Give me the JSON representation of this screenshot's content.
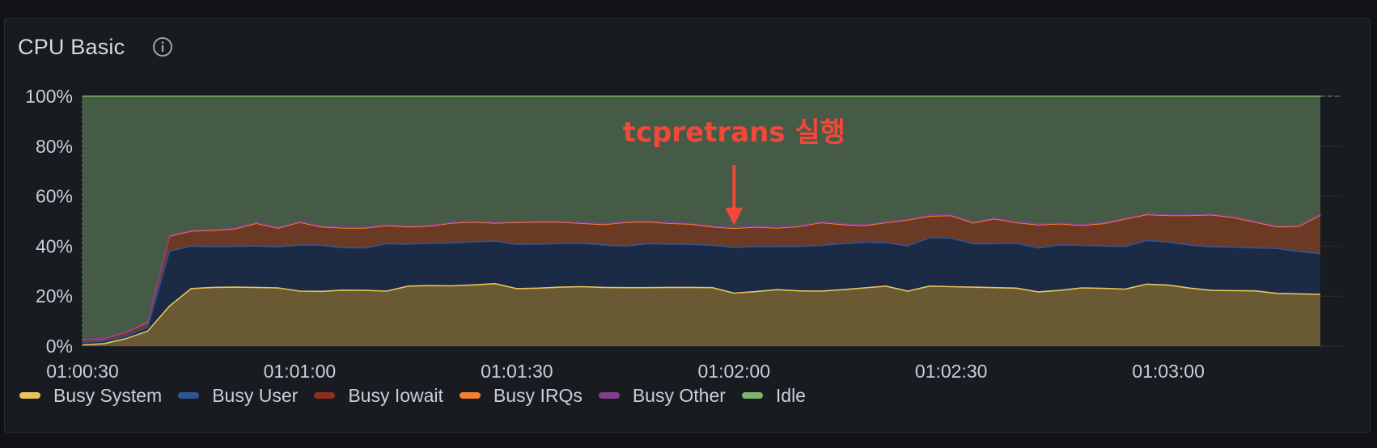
{
  "panel": {
    "title": "CPU Basic",
    "info_icon": "info-circle-icon"
  },
  "chart_data": {
    "type": "area",
    "stacked": true,
    "x": [
      "01:00:30",
      "01:00:33",
      "01:00:36",
      "01:00:39",
      "01:00:42",
      "01:00:45",
      "01:00:48",
      "01:00:51",
      "01:00:54",
      "01:00:57",
      "01:01:00",
      "01:01:03",
      "01:01:06",
      "01:01:09",
      "01:01:12",
      "01:01:15",
      "01:01:18",
      "01:01:21",
      "01:01:24",
      "01:01:27",
      "01:01:30",
      "01:01:33",
      "01:01:36",
      "01:01:39",
      "01:01:42",
      "01:01:45",
      "01:01:48",
      "01:01:51",
      "01:01:54",
      "01:01:57",
      "01:02:00",
      "01:02:03",
      "01:02:06",
      "01:02:09",
      "01:02:12",
      "01:02:15",
      "01:02:18",
      "01:02:21",
      "01:02:24",
      "01:02:27",
      "01:02:30",
      "01:02:33",
      "01:02:36",
      "01:02:39",
      "01:02:42",
      "01:02:45",
      "01:02:48",
      "01:02:51",
      "01:02:54",
      "01:02:57",
      "01:03:00",
      "01:03:03",
      "01:03:06",
      "01:03:09",
      "01:03:12",
      "01:03:15",
      "01:03:18",
      "01:03:21"
    ],
    "x_ticks": [
      "01:00:30",
      "01:01:00",
      "01:01:30",
      "01:02:00",
      "01:02:30",
      "01:03:00"
    ],
    "y_ticks": [
      "0%",
      "20%",
      "40%",
      "60%",
      "80%",
      "100%"
    ],
    "ylim": [
      0,
      100
    ],
    "y_unit": "%",
    "grid": true,
    "legend_position": "bottom-left",
    "series": [
      {
        "name": "Busy System",
        "color": "#e8c45c",
        "fill": "#6a5a34",
        "values": [
          0.5,
          1,
          3,
          6,
          16,
          23,
          23.5,
          23.6,
          23.5,
          23.3,
          22,
          21.9,
          22.4,
          22.3,
          22,
          24,
          24.2,
          24.1,
          24.5,
          25,
          23,
          23.2,
          23.6,
          23.8,
          23.5,
          23.4,
          23.4,
          23.5,
          23.5,
          23.4,
          21.2,
          21.8,
          22.6,
          22.1,
          22,
          22.6,
          23.3,
          24,
          22,
          24,
          23.8,
          23.6,
          23.4,
          23.2,
          21.7,
          22.3,
          23.3,
          23.1,
          22.8,
          24.8,
          24.4,
          23.2,
          22.3,
          22.2,
          22.1,
          21.1,
          20.9,
          20.7
        ]
      },
      {
        "name": "Busy User",
        "color": "#2f5597",
        "fill": "#1b2b45",
        "values": [
          1,
          1,
          1,
          1.5,
          22,
          17,
          16.3,
          16.3,
          16.6,
          16.4,
          18.5,
          18.5,
          17,
          17,
          19,
          16.8,
          17,
          17.2,
          17.3,
          17,
          17.7,
          17.6,
          17.5,
          17.4,
          17,
          16.6,
          17.6,
          17.3,
          17.2,
          17,
          18.3,
          18,
          17.3,
          17.8,
          18.3,
          18.4,
          18.3,
          17.4,
          18.1,
          19.4,
          19.4,
          17.4,
          17.6,
          18,
          17.6,
          18.2,
          17,
          17,
          17,
          17.5,
          17.2,
          17.3,
          17.4,
          17.4,
          17.2,
          18,
          17,
          16.3
        ]
      },
      {
        "name": "Busy Iowait",
        "color": "#8f2d1e",
        "fill": "#6b3a25",
        "values": [
          1,
          1,
          1.5,
          2,
          6,
          6,
          6.5,
          7,
          9,
          7.5,
          9,
          7.3,
          7.8,
          7.9,
          7.2,
          6.9,
          6.8,
          7.9,
          7.8,
          7.2,
          8.8,
          8.8,
          8.5,
          7.9,
          8.1,
          9.5,
          8.7,
          8.3,
          8.1,
          7.3,
          7.6,
          7.8,
          7.3,
          7.9,
          9.1,
          7.6,
          6.6,
          8,
          10.3,
          8.6,
          9,
          8.3,
          9.9,
          8.2,
          9.2,
          8.4,
          8,
          8.9,
          11,
          10.3,
          10.6,
          11.7,
          12.8,
          11.8,
          10.3,
          8.6,
          10,
          15.4
        ]
      },
      {
        "name": "Busy IRQs",
        "color": "#f57f2f",
        "fill": "#f57f2f",
        "values": [
          0.05,
          0.05,
          0.05,
          0.05,
          0.05,
          0.05,
          0.05,
          0.05,
          0.05,
          0.05,
          0.05,
          0.05,
          0.05,
          0.05,
          0.05,
          0.05,
          0.05,
          0.05,
          0.05,
          0.05,
          0.05,
          0.05,
          0.05,
          0.05,
          0.05,
          0.05,
          0.05,
          0.05,
          0.05,
          0.05,
          0.05,
          0.05,
          0.05,
          0.05,
          0.05,
          0.05,
          0.05,
          0.05,
          0.05,
          0.05,
          0.05,
          0.05,
          0.05,
          0.05,
          0.05,
          0.05,
          0.05,
          0.05,
          0.05,
          0.05,
          0.05,
          0.05,
          0.05,
          0.05,
          0.05,
          0.05,
          0.05,
          0.05
        ]
      },
      {
        "name": "Busy Other",
        "color": "#7f3f8f",
        "fill": "#5a2f5f",
        "values": [
          0.1,
          0.1,
          0.1,
          0.2,
          0.3,
          0.3,
          0.3,
          0.3,
          0.3,
          0.3,
          0.3,
          0.3,
          0.3,
          0.3,
          0.3,
          0.3,
          0.3,
          0.3,
          0.3,
          0.3,
          0.3,
          0.3,
          0.3,
          0.3,
          0.3,
          0.3,
          0.3,
          0.3,
          0.3,
          0.3,
          0.3,
          0.3,
          0.3,
          0.3,
          0.3,
          0.3,
          0.3,
          0.3,
          0.3,
          0.3,
          0.3,
          0.3,
          0.3,
          0.3,
          0.3,
          0.3,
          0.3,
          0.3,
          0.3,
          0.3,
          0.3,
          0.3,
          0.3,
          0.3,
          0.3,
          0.3,
          0.3,
          0.3
        ]
      },
      {
        "name": "Idle",
        "color": "#7eb26d",
        "fill": "#465b45",
        "values": [
          97.35,
          96.85,
          94.35,
          90.25,
          55.65,
          53.65,
          53.35,
          52.75,
          50.55,
          52.45,
          50.15,
          51.95,
          52.45,
          52.45,
          51.45,
          51.95,
          51.65,
          50.45,
          50.05,
          50.45,
          50.15,
          50.05,
          50.05,
          50.55,
          51.05,
          50.15,
          49.95,
          50.55,
          50.85,
          51.95,
          52.55,
          52.05,
          52.45,
          51.85,
          50.25,
          51.05,
          51.45,
          50.25,
          49.25,
          47.65,
          47.45,
          50.35,
          48.75,
          50.25,
          51.15,
          50.75,
          51.35,
          50.65,
          48.85,
          47.05,
          47.45,
          47.45,
          47.15,
          48.25,
          50.05,
          51.95,
          51.75,
          47.25
        ]
      }
    ],
    "annotations": [
      {
        "text": "tcpretrans 실행",
        "x": "01:02:00",
        "y": 47,
        "color": "#f0483b"
      }
    ]
  }
}
